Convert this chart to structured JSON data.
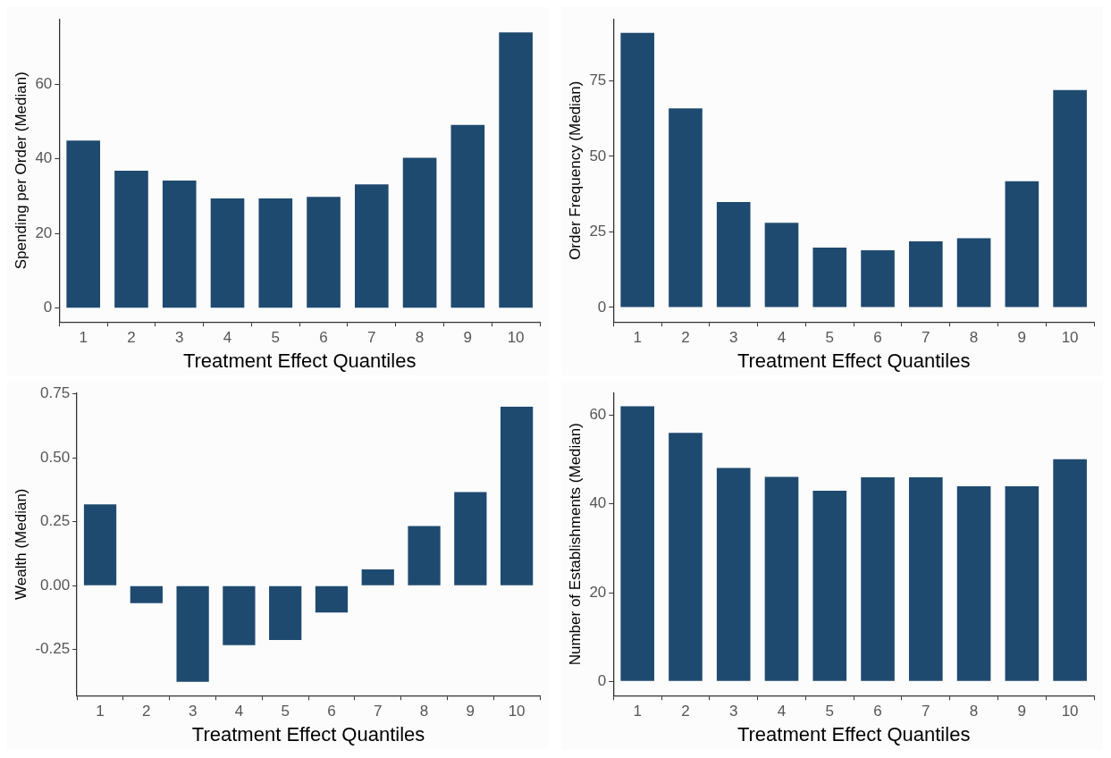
{
  "chart_data": [
    {
      "type": "bar",
      "xlabel": "Treatment Effect Quantiles",
      "ylabel": "Spending per Order (Median)",
      "categories": [
        "1",
        "2",
        "3",
        "4",
        "5",
        "6",
        "7",
        "8",
        "9",
        "10"
      ],
      "values": [
        44.9,
        36.8,
        34.2,
        29.4,
        29.4,
        29.8,
        33.2,
        40.3,
        49.1,
        73.9
      ],
      "color": "#1f4a70",
      "ylim": [
        -3.7,
        77.5
      ],
      "yticks": [
        0,
        20,
        40,
        60
      ],
      "grid": false,
      "legend": false
    },
    {
      "type": "bar",
      "xlabel": "Treatment Effect Quantiles",
      "ylabel": "Order Frequency (Median)",
      "categories": [
        "1",
        "2",
        "3",
        "4",
        "5",
        "6",
        "7",
        "8",
        "9",
        "10"
      ],
      "values": [
        90.9,
        65.9,
        34.9,
        28.0,
        19.8,
        18.9,
        21.9,
        22.9,
        41.8,
        72.0
      ],
      "color": "#1f4a70",
      "ylim": [
        -4.8,
        95.5
      ],
      "yticks": [
        0,
        25,
        50,
        75
      ],
      "grid": false,
      "legend": false
    },
    {
      "type": "bar",
      "xlabel": "Treatment Effect Quantiles",
      "ylabel": "Wealth (Median)",
      "categories": [
        "1",
        "2",
        "3",
        "4",
        "5",
        "6",
        "7",
        "8",
        "9",
        "10"
      ],
      "values": [
        0.318,
        -0.068,
        -0.376,
        -0.233,
        -0.213,
        -0.105,
        0.064,
        0.233,
        0.366,
        0.7
      ],
      "color": "#1f4a70",
      "ylim": [
        -0.43,
        0.755
      ],
      "yticks": [
        {
          "value": -0.25,
          "label": "-0.25"
        },
        {
          "value": 0,
          "label": "0.00"
        },
        {
          "value": 0.25,
          "label": "0.25"
        },
        {
          "value": 0.5,
          "label": "0.50"
        },
        {
          "value": 0.75,
          "label": "0.75"
        }
      ],
      "grid": false,
      "legend": false
    },
    {
      "type": "bar",
      "xlabel": "Treatment Effect Quantiles",
      "ylabel": "Number of Establishments (Median)",
      "categories": [
        "1",
        "2",
        "3",
        "4",
        "5",
        "6",
        "7",
        "8",
        "9",
        "10"
      ],
      "values": [
        62.0,
        56.0,
        48.1,
        46.1,
        43.0,
        46,
        46,
        44.0,
        44,
        50.1
      ],
      "color": "#1f4a70",
      "ylim": [
        -3.2,
        65.1
      ],
      "yticks": [
        0,
        20,
        40,
        60
      ],
      "grid": false,
      "legend": false
    }
  ]
}
